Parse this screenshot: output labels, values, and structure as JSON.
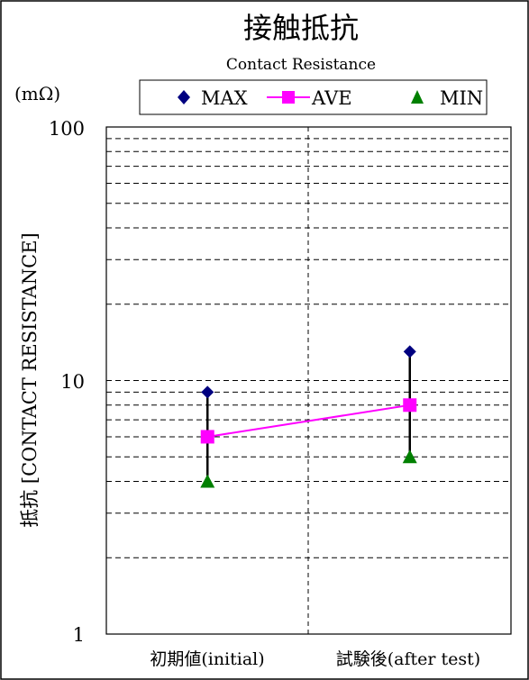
{
  "chart_data": {
    "type": "line",
    "title": "接触抵抗",
    "subtitle": "Contact Resistance",
    "unit_label": "(mΩ)",
    "ylabel": "抵抗 [CONTACT RESISTANCE]",
    "xlabel": "",
    "y_scale": "log",
    "ylim": [
      1,
      100
    ],
    "y_tick_labels": [
      "100",
      "10",
      "1"
    ],
    "y_ticks": [
      100,
      10,
      1
    ],
    "grid": true,
    "legend_position": "top",
    "categories": [
      "初期値(initial)",
      "試験後(after test)"
    ],
    "series": [
      {
        "name": "MAX",
        "values": [
          9,
          13
        ],
        "color": "#000080",
        "marker": "diamond"
      },
      {
        "name": "AVE",
        "values": [
          6,
          8
        ],
        "color": "#ff00ff",
        "marker": "square"
      },
      {
        "name": "MIN",
        "values": [
          4,
          5
        ],
        "color": "#008000",
        "marker": "triangle"
      }
    ]
  }
}
